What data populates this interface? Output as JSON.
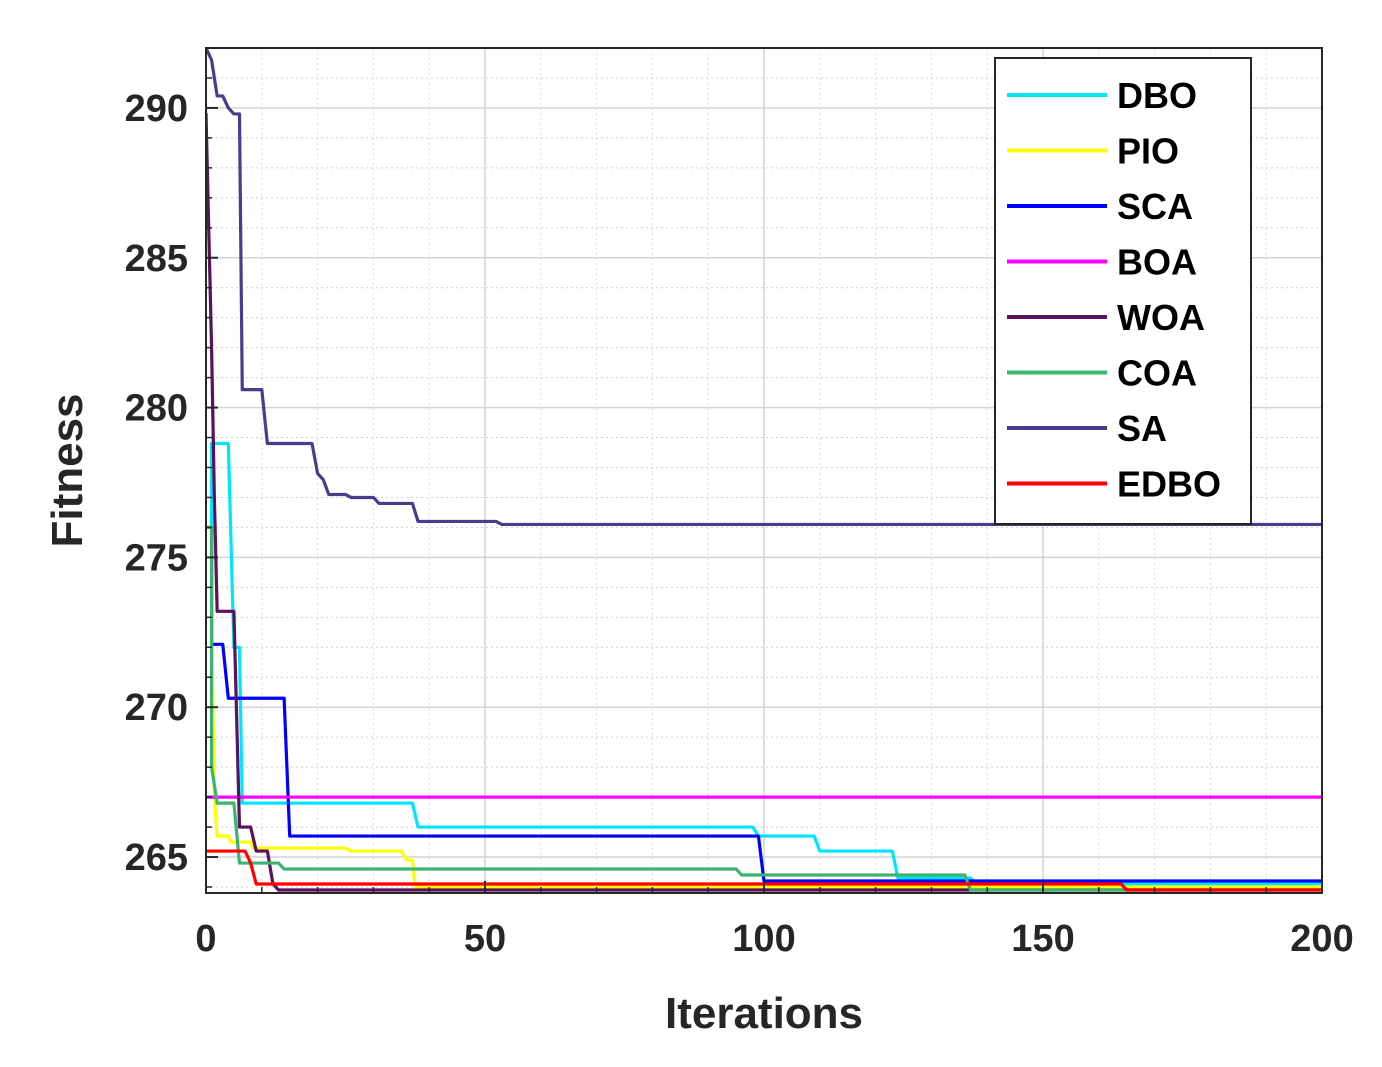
{
  "chart_data": {
    "type": "line",
    "title": "",
    "xlabel": "Iterations",
    "ylabel": "Fitness",
    "xlim": [
      0,
      200
    ],
    "ylim": [
      263.8,
      292
    ],
    "xticks": [
      0,
      50,
      100,
      150,
      200
    ],
    "yticks": [
      265,
      270,
      275,
      280,
      285,
      290
    ],
    "grid": true,
    "legend_position": "top-right",
    "series": [
      {
        "name": "DBO",
        "color": "#00e5ff",
        "points": [
          [
            0,
            276
          ],
          [
            1,
            276
          ],
          [
            1,
            278.8
          ],
          [
            4,
            278.8
          ],
          [
            5,
            272
          ],
          [
            6,
            272
          ],
          [
            6.5,
            266.8
          ],
          [
            37,
            266.8
          ],
          [
            38,
            266
          ],
          [
            98,
            266
          ],
          [
            99,
            265.7
          ],
          [
            109,
            265.7
          ],
          [
            110,
            265.2
          ],
          [
            123,
            265.2
          ],
          [
            124,
            264.3
          ],
          [
            137,
            264.3
          ],
          [
            138,
            264.1
          ],
          [
            200,
            264.1
          ]
        ]
      },
      {
        "name": "PIO",
        "color": "#ffff00",
        "points": [
          [
            0,
            276
          ],
          [
            1,
            276
          ],
          [
            1,
            273
          ],
          [
            1.5,
            267
          ],
          [
            2,
            265.7
          ],
          [
            4,
            265.7
          ],
          [
            4.5,
            265.5
          ],
          [
            8,
            265.5
          ],
          [
            8.5,
            265.3
          ],
          [
            25,
            265.3
          ],
          [
            26,
            265.2
          ],
          [
            35,
            265.2
          ],
          [
            36,
            264.9
          ],
          [
            37,
            264.9
          ],
          [
            37.5,
            264
          ],
          [
            200,
            264
          ]
        ]
      },
      {
        "name": "SCA",
        "color": "#0000ff",
        "points": [
          [
            0,
            276
          ],
          [
            1,
            276
          ],
          [
            1,
            272.1
          ],
          [
            3,
            272.1
          ],
          [
            4,
            270.3
          ],
          [
            14,
            270.3
          ],
          [
            15,
            265.7
          ],
          [
            99,
            265.7
          ],
          [
            100,
            264.2
          ],
          [
            200,
            264.2
          ]
        ]
      },
      {
        "name": "BOA",
        "color": "#ff00ff",
        "points": [
          [
            0,
            267
          ],
          [
            200,
            267
          ]
        ]
      },
      {
        "name": "WOA",
        "color": "#5b1060",
        "points": [
          [
            0,
            289.8
          ],
          [
            1,
            282
          ],
          [
            1.5,
            277
          ],
          [
            2,
            273.2
          ],
          [
            5,
            273.2
          ],
          [
            6,
            266
          ],
          [
            8,
            266
          ],
          [
            9,
            265.2
          ],
          [
            11,
            265.2
          ],
          [
            12,
            264.1
          ],
          [
            13,
            263.9
          ],
          [
            200,
            263.9
          ]
        ]
      },
      {
        "name": "COA",
        "color": "#3cb371",
        "points": [
          [
            0,
            276
          ],
          [
            1,
            276
          ],
          [
            1,
            268
          ],
          [
            2,
            266.8
          ],
          [
            5,
            266.8
          ],
          [
            6,
            264.8
          ],
          [
            13,
            264.8
          ],
          [
            14,
            264.6
          ],
          [
            95,
            264.6
          ],
          [
            96,
            264.4
          ],
          [
            136,
            264.4
          ],
          [
            137,
            263.9
          ],
          [
            200,
            263.9
          ]
        ]
      },
      {
        "name": "SA",
        "color": "#4b3b8c",
        "points": [
          [
            0,
            292
          ],
          [
            1,
            291.6
          ],
          [
            2,
            290.4
          ],
          [
            3,
            290.4
          ],
          [
            4,
            290
          ],
          [
            5,
            289.8
          ],
          [
            6,
            289.8
          ],
          [
            6.5,
            280.6
          ],
          [
            10,
            280.6
          ],
          [
            11,
            278.8
          ],
          [
            19,
            278.8
          ],
          [
            20,
            277.8
          ],
          [
            21,
            277.6
          ],
          [
            22,
            277.1
          ],
          [
            25,
            277.1
          ],
          [
            26,
            277
          ],
          [
            30,
            277
          ],
          [
            31,
            276.8
          ],
          [
            37,
            276.8
          ],
          [
            38,
            276.2
          ],
          [
            52,
            276.2
          ],
          [
            53,
            276.1
          ],
          [
            200,
            276.1
          ]
        ]
      },
      {
        "name": "EDBO",
        "color": "#ff0000",
        "points": [
          [
            0,
            265.2
          ],
          [
            7,
            265.2
          ],
          [
            8,
            264.8
          ],
          [
            9,
            264.1
          ],
          [
            164,
            264.1
          ],
          [
            165,
            263.9
          ],
          [
            200,
            263.9
          ]
        ]
      }
    ]
  }
}
